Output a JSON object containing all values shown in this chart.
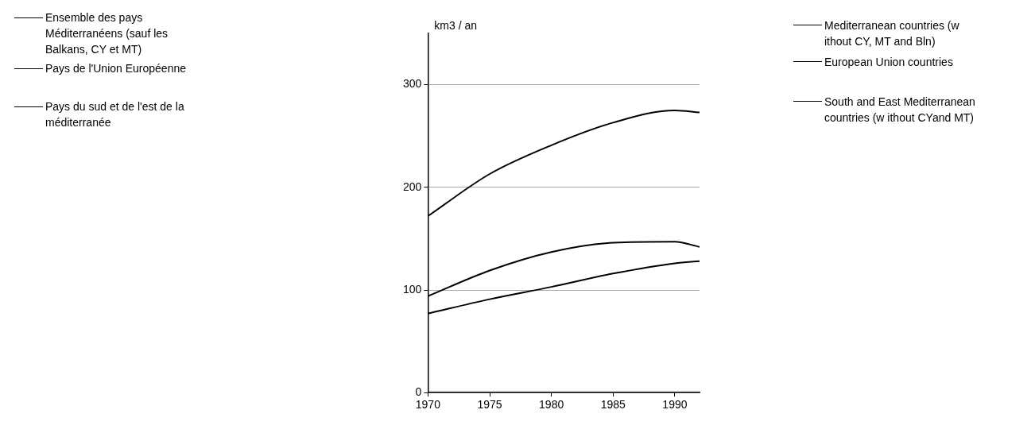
{
  "chart_data": {
    "type": "line",
    "ylabel": "km3 / an",
    "x": [
      1970,
      1975,
      1980,
      1985,
      1990,
      1992
    ],
    "xlim": [
      1970,
      1992
    ],
    "xticks": [
      1970,
      1975,
      1980,
      1985,
      1990
    ],
    "ylim": [
      0,
      350
    ],
    "yticks": [
      0,
      100,
      200,
      300
    ],
    "grid": "y",
    "legend": "top left",
    "marker": "none",
    "line_style": "solid",
    "series": [
      {
        "name": "Ensemble des pays Méditerranéens (sauf les Balkans, CY et MT)",
        "color": "#000000",
        "values": [
          172,
          213,
          241,
          263,
          275,
          273
        ]
      },
      {
        "name": "Pays de l'Union Européenne",
        "color": "#000000",
        "values": [
          94,
          119,
          137,
          146,
          147,
          142
        ]
      },
      {
        "name": "Pays du sud et de l'est de la méditerranée",
        "color": "#000000",
        "values": [
          77,
          91,
          103,
          116,
          126,
          128
        ]
      }
    ],
    "annotations": [
      "Mediterranean countries (w ithout CY, MT and Bln)",
      "European Union countries",
      "South and East Mediterranean countries (w ithout CYand MT)"
    ]
  }
}
